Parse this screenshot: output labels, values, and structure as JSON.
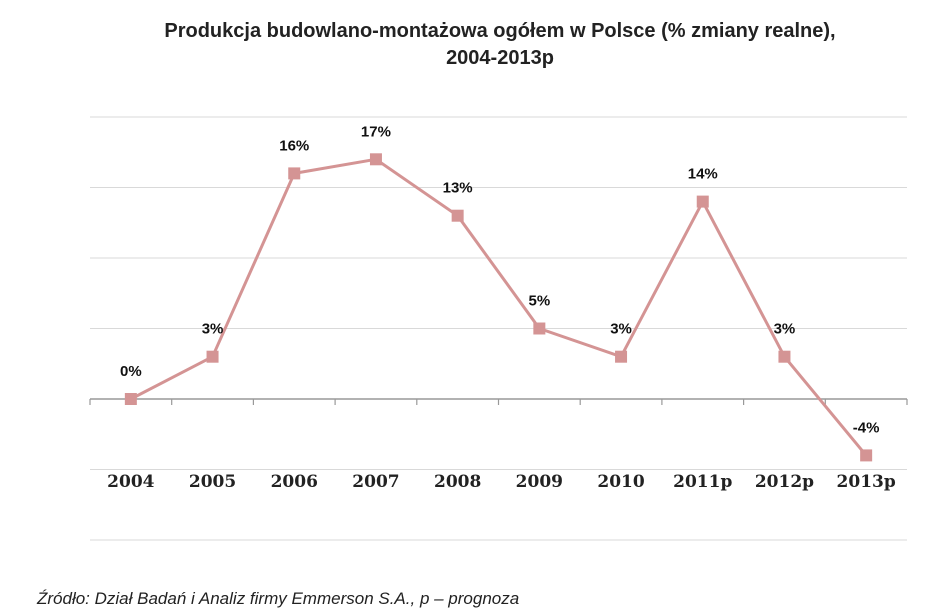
{
  "chart_data": {
    "type": "line",
    "title_line1": "Produkcja budowlano-montażowa ogółem w Polsce (% zmiany realne),",
    "title_line2": "2004-2013p",
    "categories": [
      "2004",
      "2005",
      "2006",
      "2007",
      "2008",
      "2009",
      "2010",
      "2011p",
      "2012p",
      "2013p"
    ],
    "values": [
      0,
      3,
      16,
      17,
      13,
      5,
      3,
      14,
      3,
      -4
    ],
    "data_labels": [
      "0%",
      "3%",
      "16%",
      "17%",
      "13%",
      "5%",
      "3%",
      "14%",
      "3%",
      "-4%"
    ],
    "ylim": [
      -10,
      20
    ],
    "ygrid_step": 5,
    "grid": true,
    "y_tick_labels_shown": false,
    "marker": "square",
    "line_color": "#d49494",
    "grid_color": "#d9d9d9",
    "axis_color": "#999999"
  },
  "source": "Źródło: Dział Badań i Analiz firmy Emmerson S.A., p – prognoza"
}
